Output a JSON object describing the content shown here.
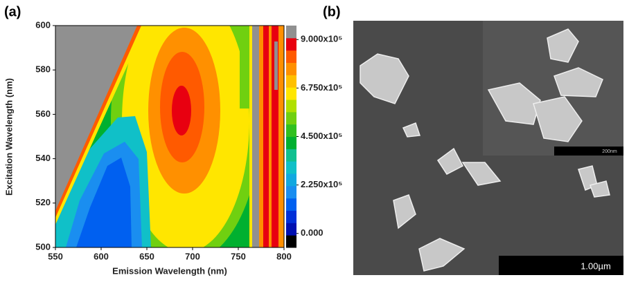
{
  "panels": {
    "a": "(a)",
    "b": "(b)"
  },
  "chart_data": {
    "type": "contour",
    "xlabel": "Emission Wavelength (nm)",
    "ylabel": "Excitation Wavelength (nm)",
    "xlim": [
      550,
      800
    ],
    "xticks": [
      550,
      600,
      650,
      700,
      750,
      800
    ],
    "ylim": [
      500,
      600
    ],
    "yticks": [
      500,
      520,
      540,
      560,
      580,
      600
    ],
    "colorbar": {
      "clim": [
        -65000,
        965000
      ],
      "colors": [
        "#000000",
        "#0010b0",
        "#0030d8",
        "#0060f0",
        "#1a8ef0",
        "#12a8e0",
        "#10c0c8",
        "#10c090",
        "#00b030",
        "#30c020",
        "#70d010",
        "#b0e000",
        "#ffe600",
        "#ffc000",
        "#ff9000",
        "#ff5a00",
        "#e80010",
        "#909090"
      ],
      "ticks": [
        {
          "value": 0,
          "label": "0.000"
        },
        {
          "value": 225000,
          "label": "2.250x10⁵"
        },
        {
          "value": 450000,
          "label": "4.500x10⁵"
        },
        {
          "value": 675000,
          "label": "6.750x10⁵"
        },
        {
          "value": 900000,
          "label": "9.000x10⁵"
        }
      ]
    }
  },
  "image": {
    "inset_scale": "200nm",
    "scale": "1.00µm"
  }
}
